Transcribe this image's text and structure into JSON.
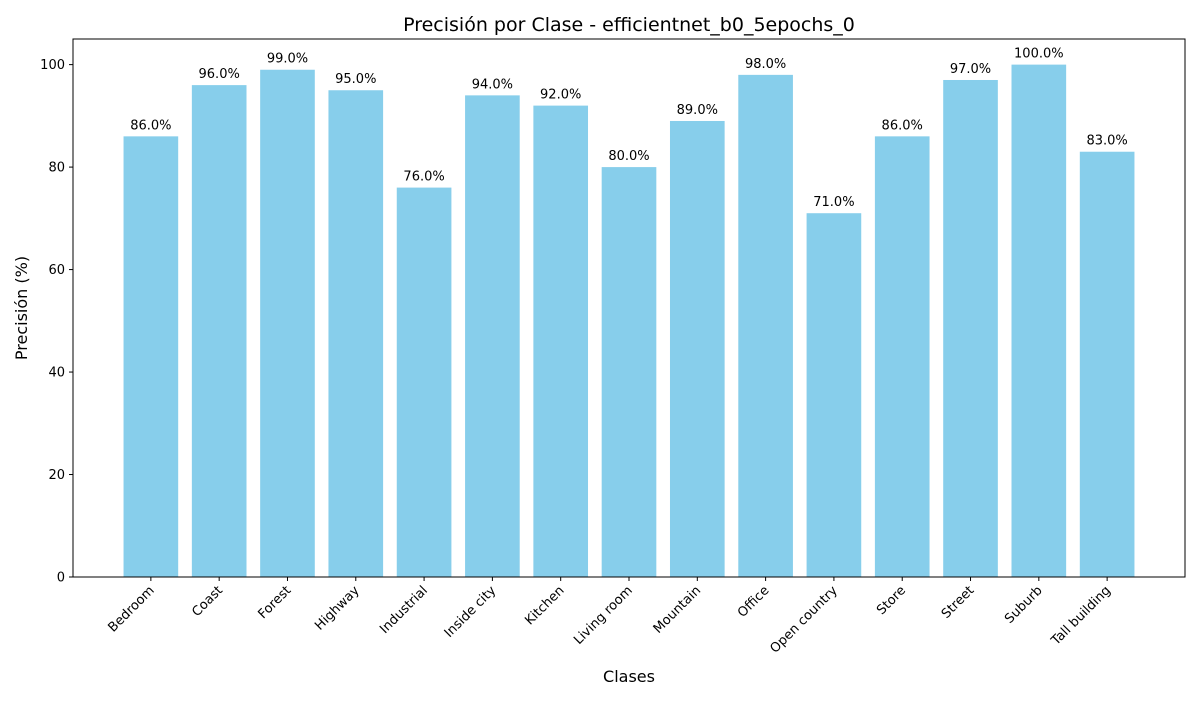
{
  "chart_data": {
    "type": "bar",
    "title": "Precisión por Clase - efficientnet_b0_5epochs_0",
    "xlabel": "Clases",
    "ylabel": "Precisión (%)",
    "categories": [
      "Bedroom",
      "Coast",
      "Forest",
      "Highway",
      "Industrial",
      "Inside city",
      "Kitchen",
      "Living room",
      "Mountain",
      "Office",
      "Open country",
      "Store",
      "Street",
      "Suburb",
      "Tall building"
    ],
    "values": [
      86.0,
      96.0,
      99.0,
      95.0,
      76.0,
      94.0,
      92.0,
      80.0,
      89.0,
      98.0,
      71.0,
      86.0,
      97.0,
      100.0,
      83.0
    ],
    "value_labels": [
      "86.0%",
      "96.0%",
      "99.0%",
      "95.0%",
      "76.0%",
      "94.0%",
      "92.0%",
      "80.0%",
      "89.0%",
      "98.0%",
      "71.0%",
      "86.0%",
      "97.0%",
      "100.0%",
      "83.0%"
    ],
    "yticks": [
      0,
      20,
      40,
      60,
      80,
      100
    ],
    "ylim": [
      0,
      105
    ],
    "grid": false,
    "legend": "none",
    "bar_color": "#87CEEB"
  }
}
